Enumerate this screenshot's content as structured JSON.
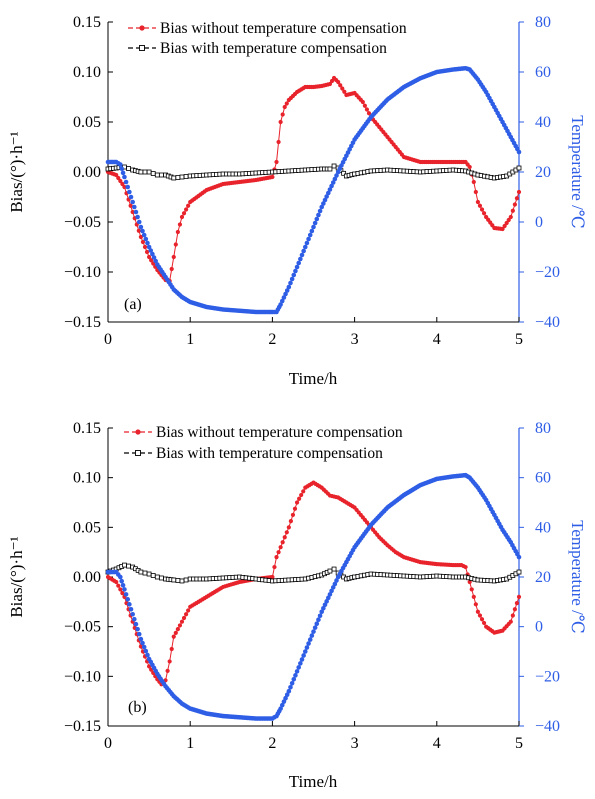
{
  "chart_data": [
    {
      "type": "line",
      "panel_label": "(a)",
      "xlabel": "Time/h",
      "ylabel": "Bias/(°)·h⁻¹",
      "y2label": "Temperature /℃",
      "xlim": [
        0,
        5
      ],
      "ylim": [
        -0.15,
        0.15
      ],
      "y2lim": [
        -40,
        80
      ],
      "x_ticks": [
        "0",
        "1",
        "2",
        "3",
        "4",
        "5"
      ],
      "y_ticks": [
        "0.15",
        "0.10",
        "0.05",
        "0.00",
        "−0.05",
        "−0.10",
        "−0.15"
      ],
      "y2_ticks": [
        "80",
        "60",
        "40",
        "20",
        "0",
        "−20",
        "−40"
      ],
      "legend_position": "top-left",
      "grid": false,
      "series": [
        {
          "name": "Bias without temperature compensation",
          "axis": "left",
          "color": "#e8232b",
          "marker": "dot",
          "points": [
            [
              0.0,
              0.0
            ],
            [
              0.1,
              -0.003
            ],
            [
              0.2,
              -0.015
            ],
            [
              0.3,
              -0.04
            ],
            [
              0.4,
              -0.065
            ],
            [
              0.5,
              -0.085
            ],
            [
              0.6,
              -0.098
            ],
            [
              0.7,
              -0.108
            ],
            [
              0.75,
              -0.109
            ],
            [
              0.8,
              -0.085
            ],
            [
              0.85,
              -0.06
            ],
            [
              0.9,
              -0.045
            ],
            [
              1.0,
              -0.03
            ],
            [
              1.2,
              -0.018
            ],
            [
              1.4,
              -0.012
            ],
            [
              1.6,
              -0.01
            ],
            [
              1.8,
              -0.008
            ],
            [
              2.0,
              -0.005
            ],
            [
              2.05,
              0.01
            ],
            [
              2.1,
              0.05
            ],
            [
              2.15,
              0.065
            ],
            [
              2.2,
              0.072
            ],
            [
              2.3,
              0.08
            ],
            [
              2.4,
              0.085
            ],
            [
              2.5,
              0.085
            ],
            [
              2.6,
              0.086
            ],
            [
              2.7,
              0.088
            ],
            [
              2.75,
              0.094
            ],
            [
              2.8,
              0.09
            ],
            [
              2.9,
              0.077
            ],
            [
              3.0,
              0.079
            ],
            [
              3.1,
              0.07
            ],
            [
              3.2,
              0.055
            ],
            [
              3.3,
              0.045
            ],
            [
              3.4,
              0.035
            ],
            [
              3.5,
              0.025
            ],
            [
              3.6,
              0.015
            ],
            [
              3.8,
              0.01
            ],
            [
              4.0,
              0.01
            ],
            [
              4.2,
              0.01
            ],
            [
              4.35,
              0.01
            ],
            [
              4.4,
              0.005
            ],
            [
              4.45,
              -0.01
            ],
            [
              4.5,
              -0.03
            ],
            [
              4.6,
              -0.045
            ],
            [
              4.7,
              -0.056
            ],
            [
              4.8,
              -0.057
            ],
            [
              4.9,
              -0.045
            ],
            [
              5.0,
              -0.02
            ]
          ]
        },
        {
          "name": "Bias with  temperature compensation",
          "axis": "left",
          "color": "#000000",
          "marker": "square-open",
          "points": [
            [
              0.0,
              0.003
            ],
            [
              0.1,
              0.004
            ],
            [
              0.2,
              0.005
            ],
            [
              0.3,
              0.002
            ],
            [
              0.4,
              0.0
            ],
            [
              0.5,
              0.0
            ],
            [
              0.6,
              -0.003
            ],
            [
              0.7,
              -0.003
            ],
            [
              0.8,
              -0.006
            ],
            [
              0.9,
              -0.005
            ],
            [
              1.0,
              -0.004
            ],
            [
              1.2,
              -0.003
            ],
            [
              1.4,
              -0.002
            ],
            [
              1.6,
              -0.002
            ],
            [
              1.8,
              -0.001
            ],
            [
              2.0,
              0.0
            ],
            [
              2.2,
              0.001
            ],
            [
              2.4,
              0.002
            ],
            [
              2.6,
              0.003
            ],
            [
              2.7,
              0.003
            ],
            [
              2.75,
              0.006
            ],
            [
              2.8,
              0.004
            ],
            [
              2.9,
              -0.004
            ],
            [
              3.0,
              -0.002
            ],
            [
              3.2,
              0.001
            ],
            [
              3.4,
              0.002
            ],
            [
              3.6,
              0.001
            ],
            [
              3.8,
              0.0
            ],
            [
              4.0,
              0.001
            ],
            [
              4.2,
              0.002
            ],
            [
              4.35,
              0.001
            ],
            [
              4.5,
              -0.003
            ],
            [
              4.7,
              -0.006
            ],
            [
              4.85,
              -0.004
            ],
            [
              5.0,
              0.004
            ]
          ]
        },
        {
          "name": "Temperature",
          "axis": "right",
          "color": "#2f5ee6",
          "marker": "dot",
          "points": [
            [
              0.0,
              24
            ],
            [
              0.1,
              24
            ],
            [
              0.15,
              23
            ],
            [
              0.2,
              18
            ],
            [
              0.3,
              8
            ],
            [
              0.4,
              -2
            ],
            [
              0.5,
              -10
            ],
            [
              0.6,
              -17
            ],
            [
              0.7,
              -22
            ],
            [
              0.8,
              -27
            ],
            [
              0.9,
              -30
            ],
            [
              1.0,
              -32
            ],
            [
              1.2,
              -34
            ],
            [
              1.4,
              -35
            ],
            [
              1.6,
              -35.5
            ],
            [
              1.8,
              -36
            ],
            [
              2.0,
              -36
            ],
            [
              2.05,
              -36
            ],
            [
              2.1,
              -33
            ],
            [
              2.2,
              -26
            ],
            [
              2.4,
              -10
            ],
            [
              2.6,
              6
            ],
            [
              2.8,
              20
            ],
            [
              3.0,
              33
            ],
            [
              3.2,
              42
            ],
            [
              3.4,
              49
            ],
            [
              3.6,
              54
            ],
            [
              3.8,
              57.5
            ],
            [
              4.0,
              60
            ],
            [
              4.2,
              61
            ],
            [
              4.35,
              61.5
            ],
            [
              4.4,
              61
            ],
            [
              4.5,
              57
            ],
            [
              4.6,
              52
            ],
            [
              4.7,
              46
            ],
            [
              4.8,
              40
            ],
            [
              4.9,
              34
            ],
            [
              5.0,
              28
            ]
          ]
        }
      ]
    },
    {
      "type": "line",
      "panel_label": "(b)",
      "xlabel": "Time/h",
      "ylabel": "Bias/(°)·h⁻¹",
      "y2label": "Temperature /℃",
      "xlim": [
        0,
        5
      ],
      "ylim": [
        -0.15,
        0.15
      ],
      "y2lim": [
        -40,
        80
      ],
      "x_ticks": [
        "0",
        "1",
        "2",
        "3",
        "4",
        "5"
      ],
      "y_ticks": [
        "0.15",
        "0.10",
        "0.05",
        "0.00",
        "−0.05",
        "−0.10",
        "−0.15"
      ],
      "y2_ticks": [
        "80",
        "60",
        "40",
        "20",
        "0",
        "−20",
        "−40"
      ],
      "legend_position": "top-left",
      "grid": false,
      "series": [
        {
          "name": "Bias without temperature compensation",
          "axis": "left",
          "color": "#e8232b",
          "marker": "dot",
          "points": [
            [
              0.0,
              0.0
            ],
            [
              0.1,
              -0.005
            ],
            [
              0.2,
              -0.02
            ],
            [
              0.3,
              -0.045
            ],
            [
              0.4,
              -0.07
            ],
            [
              0.5,
              -0.09
            ],
            [
              0.6,
              -0.103
            ],
            [
              0.65,
              -0.108
            ],
            [
              0.7,
              -0.104
            ],
            [
              0.75,
              -0.085
            ],
            [
              0.8,
              -0.06
            ],
            [
              0.9,
              -0.045
            ],
            [
              1.0,
              -0.03
            ],
            [
              1.2,
              -0.02
            ],
            [
              1.4,
              -0.01
            ],
            [
              1.6,
              -0.005
            ],
            [
              1.8,
              -0.002
            ],
            [
              2.0,
              0.0
            ],
            [
              2.05,
              0.02
            ],
            [
              2.1,
              0.03
            ],
            [
              2.2,
              0.05
            ],
            [
              2.3,
              0.075
            ],
            [
              2.4,
              0.09
            ],
            [
              2.5,
              0.095
            ],
            [
              2.6,
              0.09
            ],
            [
              2.7,
              0.082
            ],
            [
              2.8,
              0.08
            ],
            [
              2.9,
              0.075
            ],
            [
              3.0,
              0.07
            ],
            [
              3.1,
              0.06
            ],
            [
              3.2,
              0.05
            ],
            [
              3.3,
              0.04
            ],
            [
              3.4,
              0.032
            ],
            [
              3.5,
              0.025
            ],
            [
              3.6,
              0.02
            ],
            [
              3.8,
              0.015
            ],
            [
              4.0,
              0.013
            ],
            [
              4.2,
              0.012
            ],
            [
              4.3,
              0.012
            ],
            [
              4.35,
              0.01
            ],
            [
              4.4,
              -0.005
            ],
            [
              4.45,
              -0.02
            ],
            [
              4.5,
              -0.035
            ],
            [
              4.6,
              -0.05
            ],
            [
              4.7,
              -0.056
            ],
            [
              4.8,
              -0.054
            ],
            [
              4.9,
              -0.045
            ],
            [
              5.0,
              -0.02
            ]
          ]
        },
        {
          "name": "Bias with  temperature compensation",
          "axis": "left",
          "color": "#000000",
          "marker": "square-open",
          "points": [
            [
              0.0,
              0.005
            ],
            [
              0.1,
              0.008
            ],
            [
              0.2,
              0.012
            ],
            [
              0.3,
              0.01
            ],
            [
              0.4,
              0.005
            ],
            [
              0.5,
              0.003
            ],
            [
              0.6,
              0.0
            ],
            [
              0.7,
              -0.002
            ],
            [
              0.8,
              -0.003
            ],
            [
              0.9,
              -0.004
            ],
            [
              1.0,
              -0.002
            ],
            [
              1.2,
              -0.002
            ],
            [
              1.4,
              -0.001
            ],
            [
              1.6,
              0.0
            ],
            [
              1.8,
              -0.002
            ],
            [
              2.0,
              -0.004
            ],
            [
              2.2,
              -0.003
            ],
            [
              2.4,
              -0.002
            ],
            [
              2.6,
              0.002
            ],
            [
              2.7,
              0.006
            ],
            [
              2.75,
              0.008
            ],
            [
              2.8,
              0.004
            ],
            [
              2.9,
              -0.002
            ],
            [
              3.0,
              0.0
            ],
            [
              3.2,
              0.003
            ],
            [
              3.4,
              0.002
            ],
            [
              3.6,
              0.001
            ],
            [
              3.8,
              0.0
            ],
            [
              4.0,
              0.001
            ],
            [
              4.2,
              0.0
            ],
            [
              4.35,
              0.0
            ],
            [
              4.5,
              -0.003
            ],
            [
              4.7,
              -0.004
            ],
            [
              4.85,
              -0.002
            ],
            [
              5.0,
              0.005
            ]
          ]
        },
        {
          "name": "Temperature",
          "axis": "right",
          "color": "#2f5ee6",
          "marker": "dot",
          "points": [
            [
              0.0,
              22
            ],
            [
              0.1,
              22
            ],
            [
              0.15,
              20
            ],
            [
              0.2,
              15
            ],
            [
              0.3,
              5
            ],
            [
              0.4,
              -5
            ],
            [
              0.5,
              -13
            ],
            [
              0.6,
              -19
            ],
            [
              0.7,
              -24
            ],
            [
              0.8,
              -28
            ],
            [
              0.9,
              -31
            ],
            [
              1.0,
              -33
            ],
            [
              1.2,
              -35
            ],
            [
              1.4,
              -36
            ],
            [
              1.6,
              -36.5
            ],
            [
              1.8,
              -37
            ],
            [
              2.0,
              -37
            ],
            [
              2.05,
              -36
            ],
            [
              2.1,
              -33
            ],
            [
              2.2,
              -26
            ],
            [
              2.4,
              -10
            ],
            [
              2.6,
              6
            ],
            [
              2.8,
              20
            ],
            [
              3.0,
              32
            ],
            [
              3.2,
              41
            ],
            [
              3.4,
              48
            ],
            [
              3.6,
              53
            ],
            [
              3.8,
              57
            ],
            [
              4.0,
              59.5
            ],
            [
              4.2,
              60.5
            ],
            [
              4.35,
              61
            ],
            [
              4.4,
              60
            ],
            [
              4.5,
              56
            ],
            [
              4.6,
              51
            ],
            [
              4.7,
              45
            ],
            [
              4.8,
              39
            ],
            [
              4.9,
              34
            ],
            [
              5.0,
              28
            ]
          ]
        }
      ]
    }
  ]
}
